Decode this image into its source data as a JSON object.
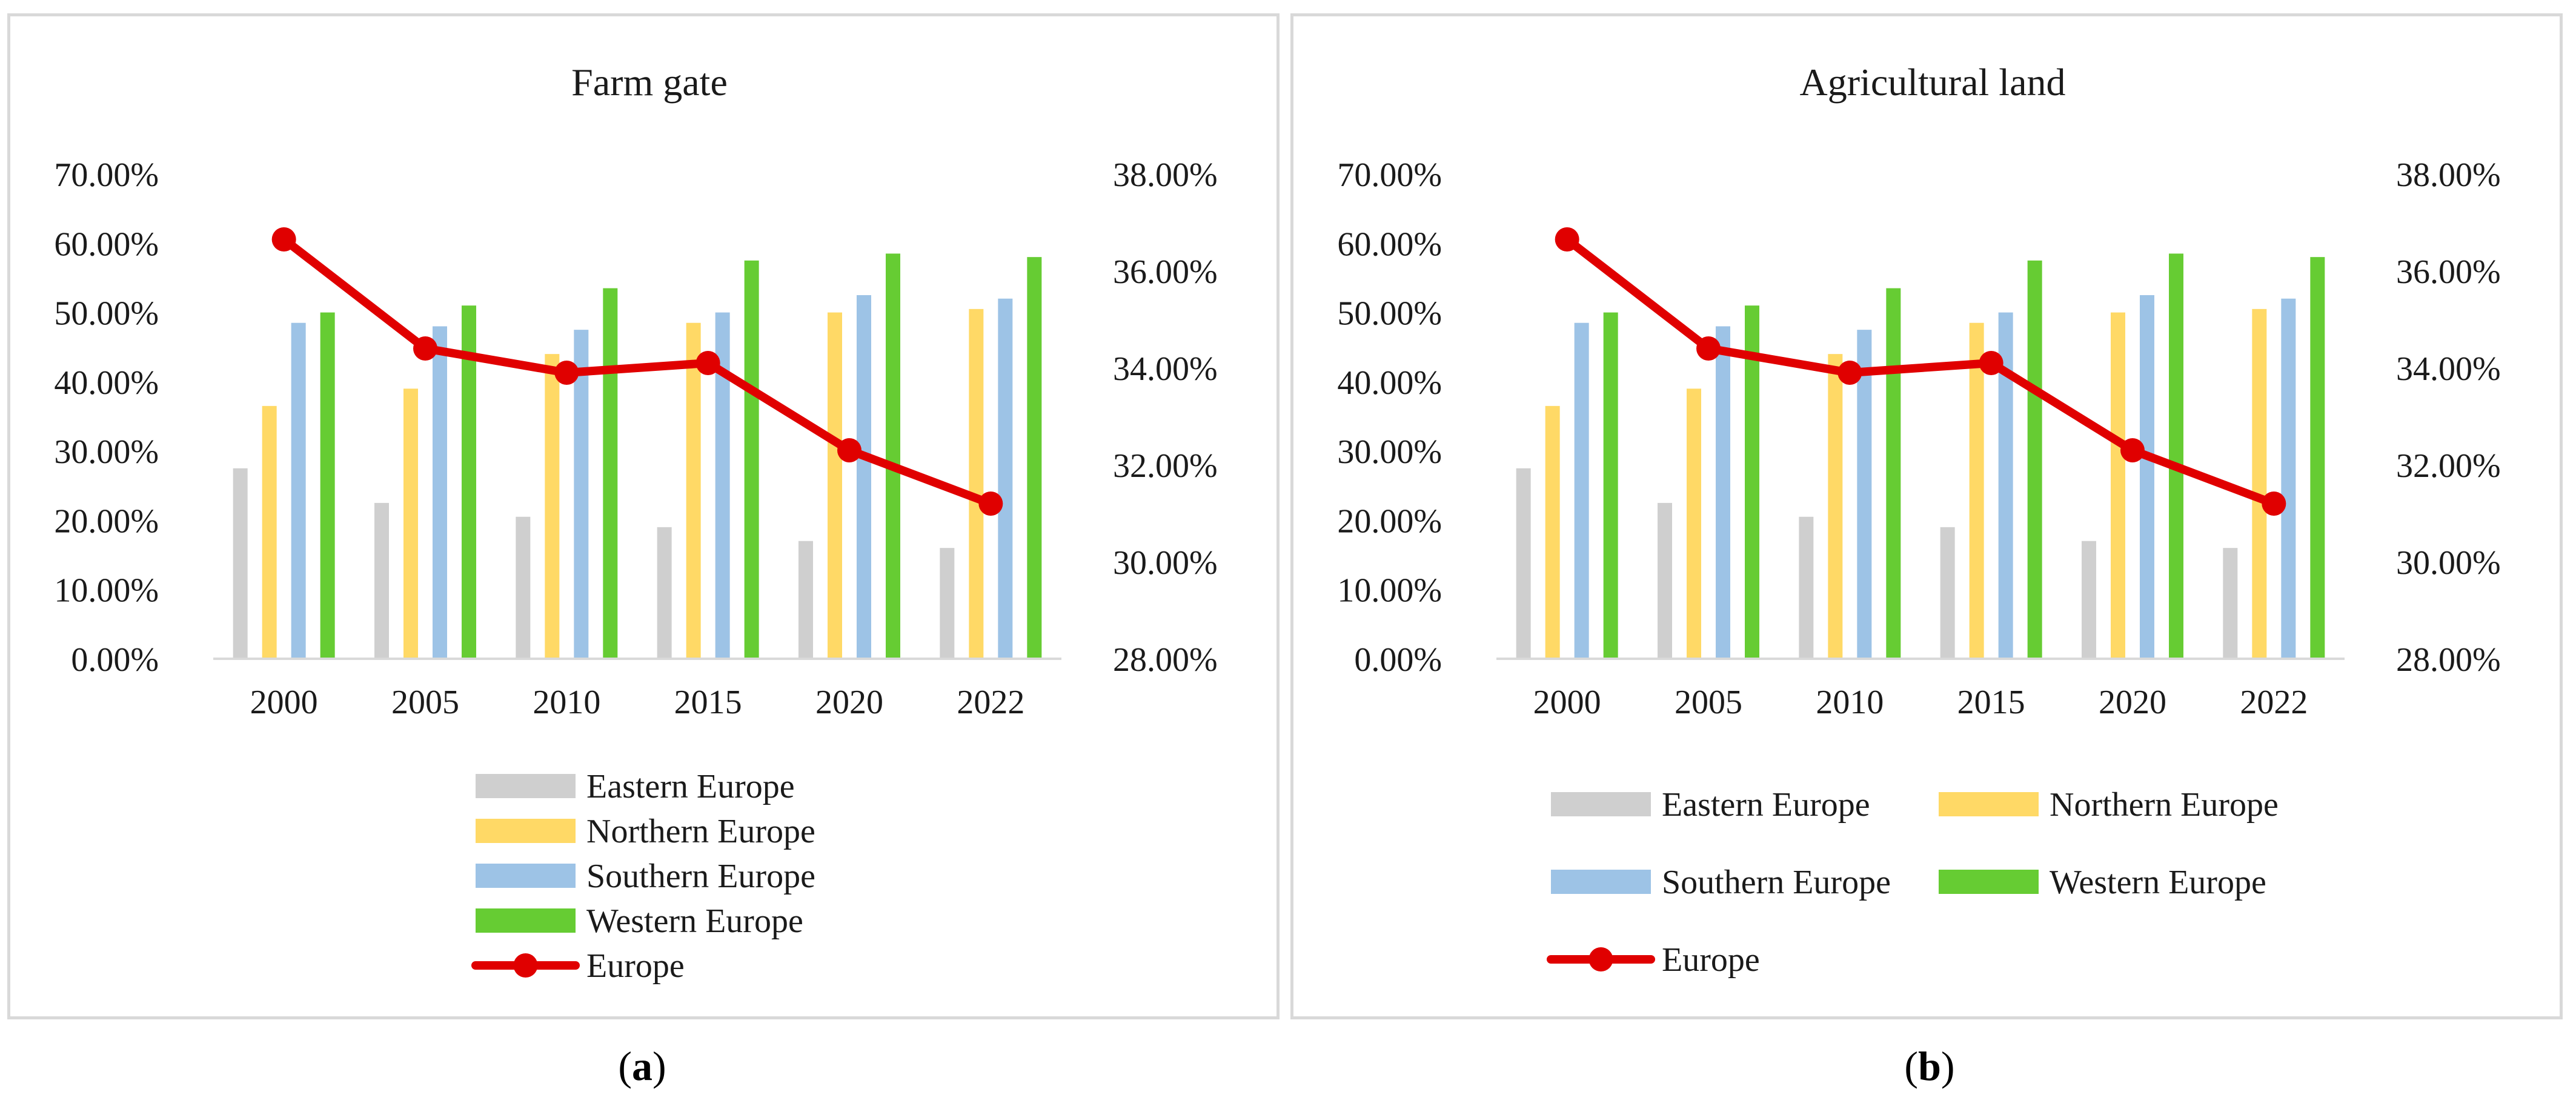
{
  "panels": [
    {
      "id": "a",
      "caption_letter": "a",
      "legend_layout": "stacked",
      "chart_data": {
        "type": "bar+line",
        "title": "Farm gate",
        "categories": [
          "2000",
          "2005",
          "2010",
          "2015",
          "2020",
          "2022"
        ],
        "series": [
          {
            "name": "Eastern Europe",
            "type": "bar",
            "axis": "left",
            "color": "#cfcfcf",
            "values": [
              27.5,
              22.5,
              20.5,
              19.0,
              17.0,
              16.0
            ]
          },
          {
            "name": "Northern Europe",
            "type": "bar",
            "axis": "left",
            "color": "#ffd966",
            "values": [
              36.5,
              39.0,
              44.0,
              48.5,
              50.0,
              50.5
            ]
          },
          {
            "name": "Southern Europe",
            "type": "bar",
            "axis": "left",
            "color": "#9dc3e6",
            "values": [
              48.5,
              48.0,
              47.5,
              50.0,
              52.5,
              52.0
            ]
          },
          {
            "name": "Western Europe",
            "type": "bar",
            "axis": "left",
            "color": "#66cc33",
            "values": [
              50.0,
              51.0,
              53.5,
              57.5,
              58.5,
              58.0
            ]
          },
          {
            "name": "Europe",
            "type": "line",
            "axis": "right",
            "color": "#e00000",
            "values": [
              36.65,
              34.4,
              33.9,
              34.1,
              32.3,
              31.2
            ]
          }
        ],
        "y_left": {
          "min": 0,
          "max": 70,
          "step": 10,
          "ticks": [
            "0.00%",
            "10.00%",
            "20.00%",
            "30.00%",
            "40.00%",
            "50.00%",
            "60.00%",
            "70.00%"
          ]
        },
        "y_right": {
          "min": 28,
          "max": 38,
          "step": 2,
          "ticks": [
            "28.00%",
            "30.00%",
            "32.00%",
            "34.00%",
            "36.00%",
            "38.00%"
          ]
        },
        "gridlines": false,
        "legend_position": "bottom"
      }
    },
    {
      "id": "b",
      "caption_letter": "b",
      "legend_layout": "grid",
      "chart_data": {
        "type": "bar+line",
        "title": "Agricultural land",
        "categories": [
          "2000",
          "2005",
          "2010",
          "2015",
          "2020",
          "2022"
        ],
        "series": [
          {
            "name": "Eastern Europe",
            "type": "bar",
            "axis": "left",
            "color": "#cfcfcf",
            "values": [
              27.5,
              22.5,
              20.5,
              19.0,
              17.0,
              16.0
            ]
          },
          {
            "name": "Northern Europe",
            "type": "bar",
            "axis": "left",
            "color": "#ffd966",
            "values": [
              36.5,
              39.0,
              44.0,
              48.5,
              50.0,
              50.5
            ]
          },
          {
            "name": "Southern Europe",
            "type": "bar",
            "axis": "left",
            "color": "#9dc3e6",
            "values": [
              48.5,
              48.0,
              47.5,
              50.0,
              52.5,
              52.0
            ]
          },
          {
            "name": "Western Europe",
            "type": "bar",
            "axis": "left",
            "color": "#66cc33",
            "values": [
              50.0,
              51.0,
              53.5,
              57.5,
              58.5,
              58.0
            ]
          },
          {
            "name": "Europe",
            "type": "line",
            "axis": "right",
            "color": "#e00000",
            "values": [
              36.65,
              34.4,
              33.9,
              34.1,
              32.3,
              31.2
            ]
          }
        ],
        "y_left": {
          "min": 0,
          "max": 70,
          "step": 10,
          "ticks": [
            "0.00%",
            "10.00%",
            "20.00%",
            "30.00%",
            "40.00%",
            "50.00%",
            "60.00%",
            "70.00%"
          ]
        },
        "y_right": {
          "min": 28,
          "max": 38,
          "step": 2,
          "ticks": [
            "28.00%",
            "30.00%",
            "32.00%",
            "34.00%",
            "36.00%",
            "38.00%"
          ]
        },
        "gridlines": false,
        "legend_position": "bottom"
      }
    }
  ]
}
